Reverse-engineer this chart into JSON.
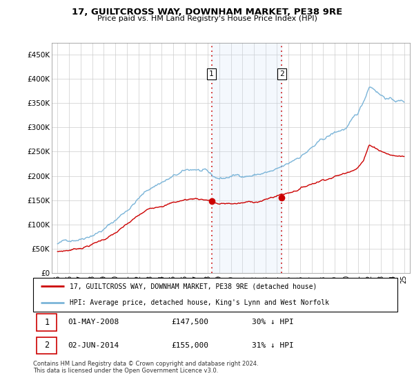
{
  "title": "17, GUILTCROSS WAY, DOWNHAM MARKET, PE38 9RE",
  "subtitle": "Price paid vs. HM Land Registry's House Price Index (HPI)",
  "legend_line1": "17, GUILTCROSS WAY, DOWNHAM MARKET, PE38 9RE (detached house)",
  "legend_line2": "HPI: Average price, detached house, King's Lynn and West Norfolk",
  "footnote": "Contains HM Land Registry data © Crown copyright and database right 2024.\nThis data is licensed under the Open Government Licence v3.0.",
  "table_rows": [
    {
      "num": "1",
      "date": "01-MAY-2008",
      "price": "£147,500",
      "pct": "30% ↓ HPI"
    },
    {
      "num": "2",
      "date": "02-JUN-2014",
      "price": "£155,000",
      "pct": "31% ↓ HPI"
    }
  ],
  "purchase1_x": 2008.33,
  "purchase1_y": 147500,
  "purchase2_x": 2014.42,
  "purchase2_y": 155000,
  "hpi_color": "#7ab4d8",
  "price_color": "#cc0000",
  "vline_color": "#cc0000",
  "shade_color": "#ddeeff",
  "ylim": [
    0,
    475000
  ],
  "yticks": [
    0,
    50000,
    100000,
    150000,
    200000,
    250000,
    300000,
    350000,
    400000,
    450000
  ],
  "ytick_labels": [
    "£0",
    "£50K",
    "£100K",
    "£150K",
    "£200K",
    "£250K",
    "£300K",
    "£350K",
    "£400K",
    "£450K"
  ],
  "xlim_start": 1994.5,
  "xlim_end": 2025.5,
  "background_color": "#f0f4ff"
}
